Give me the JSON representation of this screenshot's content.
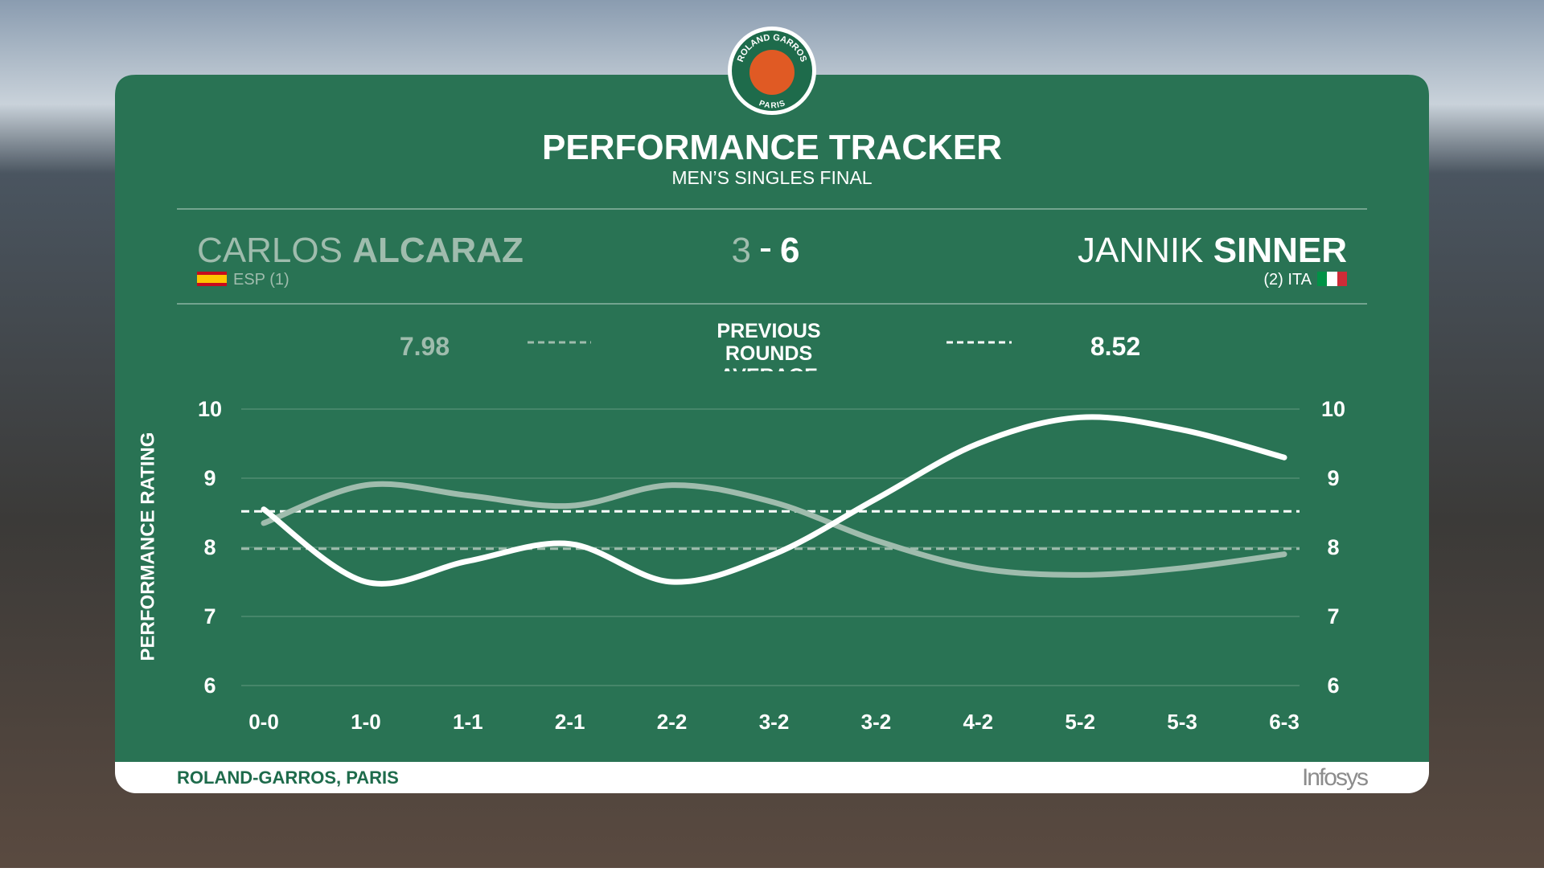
{
  "logo": {
    "top": "ROLAND GARROS",
    "bottom": "PARIS"
  },
  "header": {
    "title": "PERFORMANCE TRACKER",
    "subtitle": "MEN’S SINGLES FINAL"
  },
  "players": [
    {
      "first_name": "CARLOS",
      "info": "ESP (1)",
      "score": 3
    },
    {
      "first_name": "JANNIK",
      "info": "(2) ITA",
      "score": 6
    }
  ],
  "average_label": "PREVIOUS ROUNDS AVERAGE",
  "footer": {
    "venue": "ROLAND-GARROS, PARIS",
    "sponsor": "Infosys"
  },
  "chart_data": {
    "type": "line",
    "y_label": "PERFORMANCE RATING",
    "categories": [
      "0-0",
      "1-0",
      "1-1",
      "2-1",
      "2-2",
      "3-2",
      "3-2",
      "4-2",
      "5-2",
      "5-3",
      "6-3"
    ],
    "series": [
      {
        "name": "ALCARAZ",
        "color": "#9fbcad",
        "average": 7.98,
        "values": [
          8.35,
          8.9,
          8.75,
          8.6,
          8.9,
          8.65,
          8.1,
          7.7,
          7.6,
          7.7,
          7.9
        ]
      },
      {
        "name": "SINNER",
        "color": "#ffffff",
        "average": 8.52,
        "values": [
          8.55,
          7.5,
          7.8,
          8.05,
          7.5,
          7.9,
          8.7,
          9.5,
          9.88,
          9.7,
          9.3
        ]
      }
    ],
    "ylim": [
      6,
      10
    ],
    "yticks": [
      6,
      7,
      8,
      9,
      10
    ],
    "grid": true,
    "smooth": true
  }
}
